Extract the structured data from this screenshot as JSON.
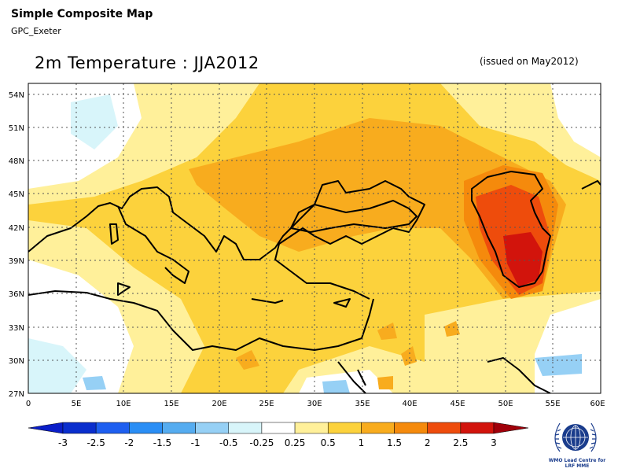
{
  "header": {
    "title": "Simple Composite Map",
    "source": "GPC_Exeter"
  },
  "map": {
    "title": "2m Temperature : JJA2012",
    "issued": "(issued on May2012)",
    "lat_labels": [
      "54N",
      "51N",
      "48N",
      "45N",
      "42N",
      "39N",
      "36N",
      "33N",
      "30N",
      "27N"
    ],
    "lon_labels": [
      "0",
      "5E",
      "10E",
      "15E",
      "20E",
      "25E",
      "30E",
      "35E",
      "40E",
      "45E",
      "50E",
      "55E",
      "60E"
    ],
    "extent": {
      "lon": [
        0,
        60
      ],
      "lat": [
        27,
        55
      ]
    }
  },
  "colorbar": {
    "labels": [
      "-3",
      "-2.5",
      "-2",
      "-1.5",
      "-1",
      "-0.5",
      "-0.25",
      "0.25",
      "0.5",
      "1",
      "1.5",
      "2",
      "2.5",
      "3"
    ],
    "colors": [
      "#0a2ecd",
      "#1e5ff0",
      "#2a8ef5",
      "#55acf0",
      "#96d0f5",
      "#d8f5fa",
      "#ffffff",
      "#fff09a",
      "#fcd23c",
      "#f8ac1e",
      "#f58a0c",
      "#ee4c0c",
      "#d2140c"
    ],
    "end_low": "#0a1ec8",
    "end_high": "#a0000a"
  },
  "logo": {
    "caption_line1": "WMO Lead Centre for",
    "caption_line2": "LRF MME"
  }
}
